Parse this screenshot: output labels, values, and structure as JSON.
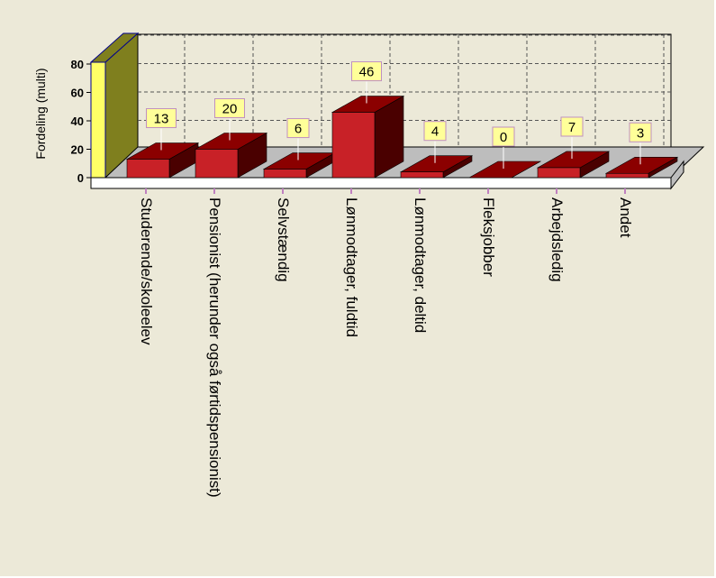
{
  "chart_data": {
    "type": "bar",
    "title": "",
    "xlabel": "",
    "ylabel": "Fordeling (multi)",
    "ylim": [
      0,
      80
    ],
    "yticks": [
      0,
      20,
      40,
      60,
      80
    ],
    "grid": true,
    "legend": "none",
    "categories": [
      "Studerende/skoleelev",
      "Pensionist (herunder også førtidspensionist)",
      "Selvstændig",
      "Lønmodtager, fuldtid",
      "Lønmodtager, deltid",
      "Fleksjobber",
      "Arbejdsledig",
      "Andet"
    ],
    "series": [
      {
        "values": [
          13,
          20,
          6,
          46,
          4,
          0,
          7,
          3
        ]
      }
    ],
    "data_labels": [
      "13",
      "20",
      "6",
      "46",
      "4",
      "0",
      "7",
      "3"
    ]
  },
  "colors": {
    "panel_background": "#ece9d8",
    "bar_front": "#c82127",
    "bar_top": "#8b0000",
    "bar_side": "#4a0000",
    "axis_wall_front": "#ffff66",
    "axis_wall_side": "#7f7f1e",
    "floor": "#bdbdbd",
    "label_box": "#ffff99",
    "label_border": "#c090c0"
  }
}
